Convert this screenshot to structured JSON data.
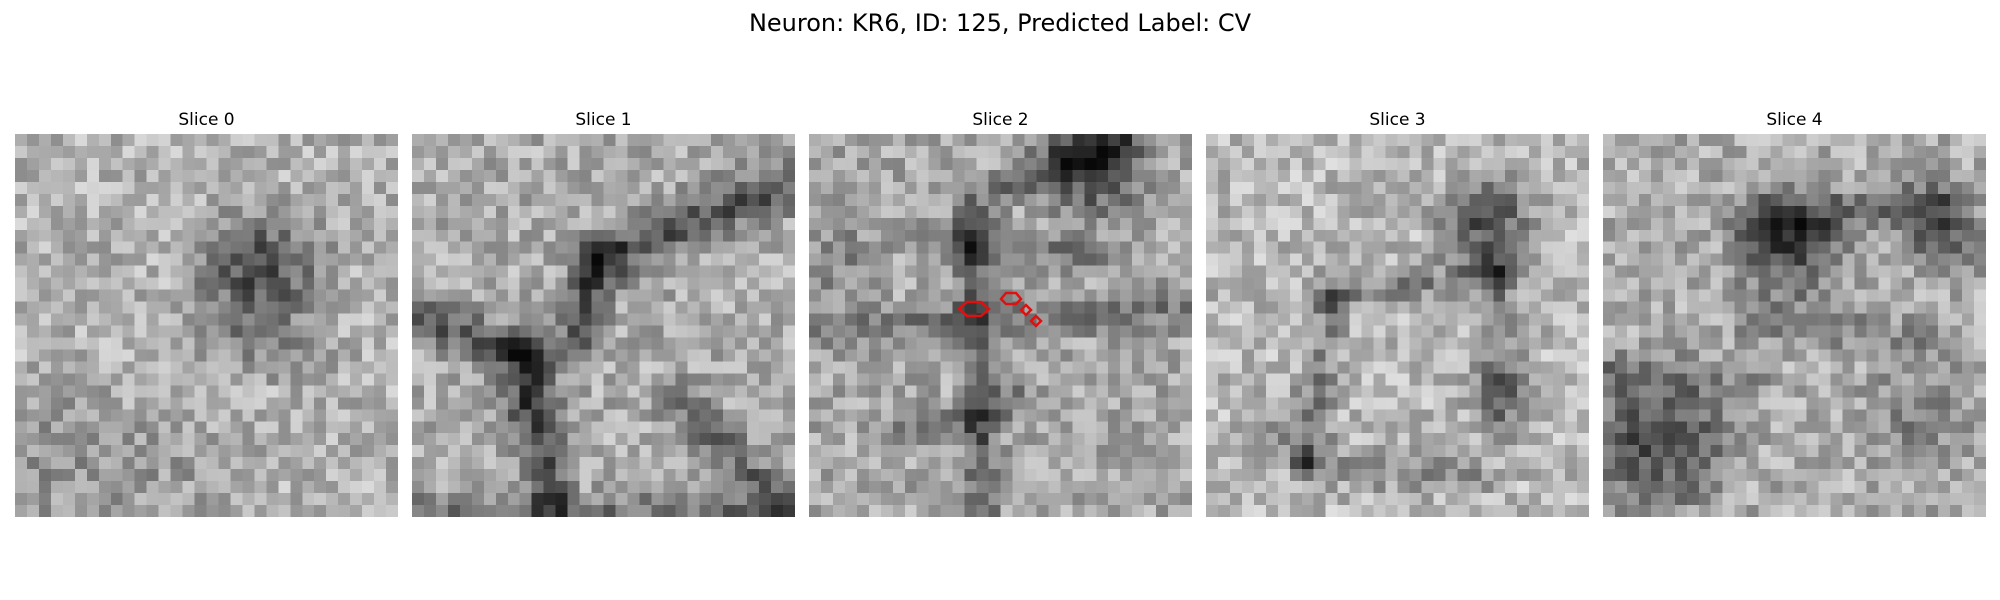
{
  "figure": {
    "title": "Neuron: KR6, ID: 125, Predicted Label: CV"
  },
  "panels": [
    {
      "title": "Slice 0"
    },
    {
      "title": "Slice 1"
    },
    {
      "title": "Slice 2"
    },
    {
      "title": "Slice 3"
    },
    {
      "title": "Slice 4"
    }
  ],
  "colors": {
    "contour": "#e01010",
    "colormap": "grayscale"
  }
}
